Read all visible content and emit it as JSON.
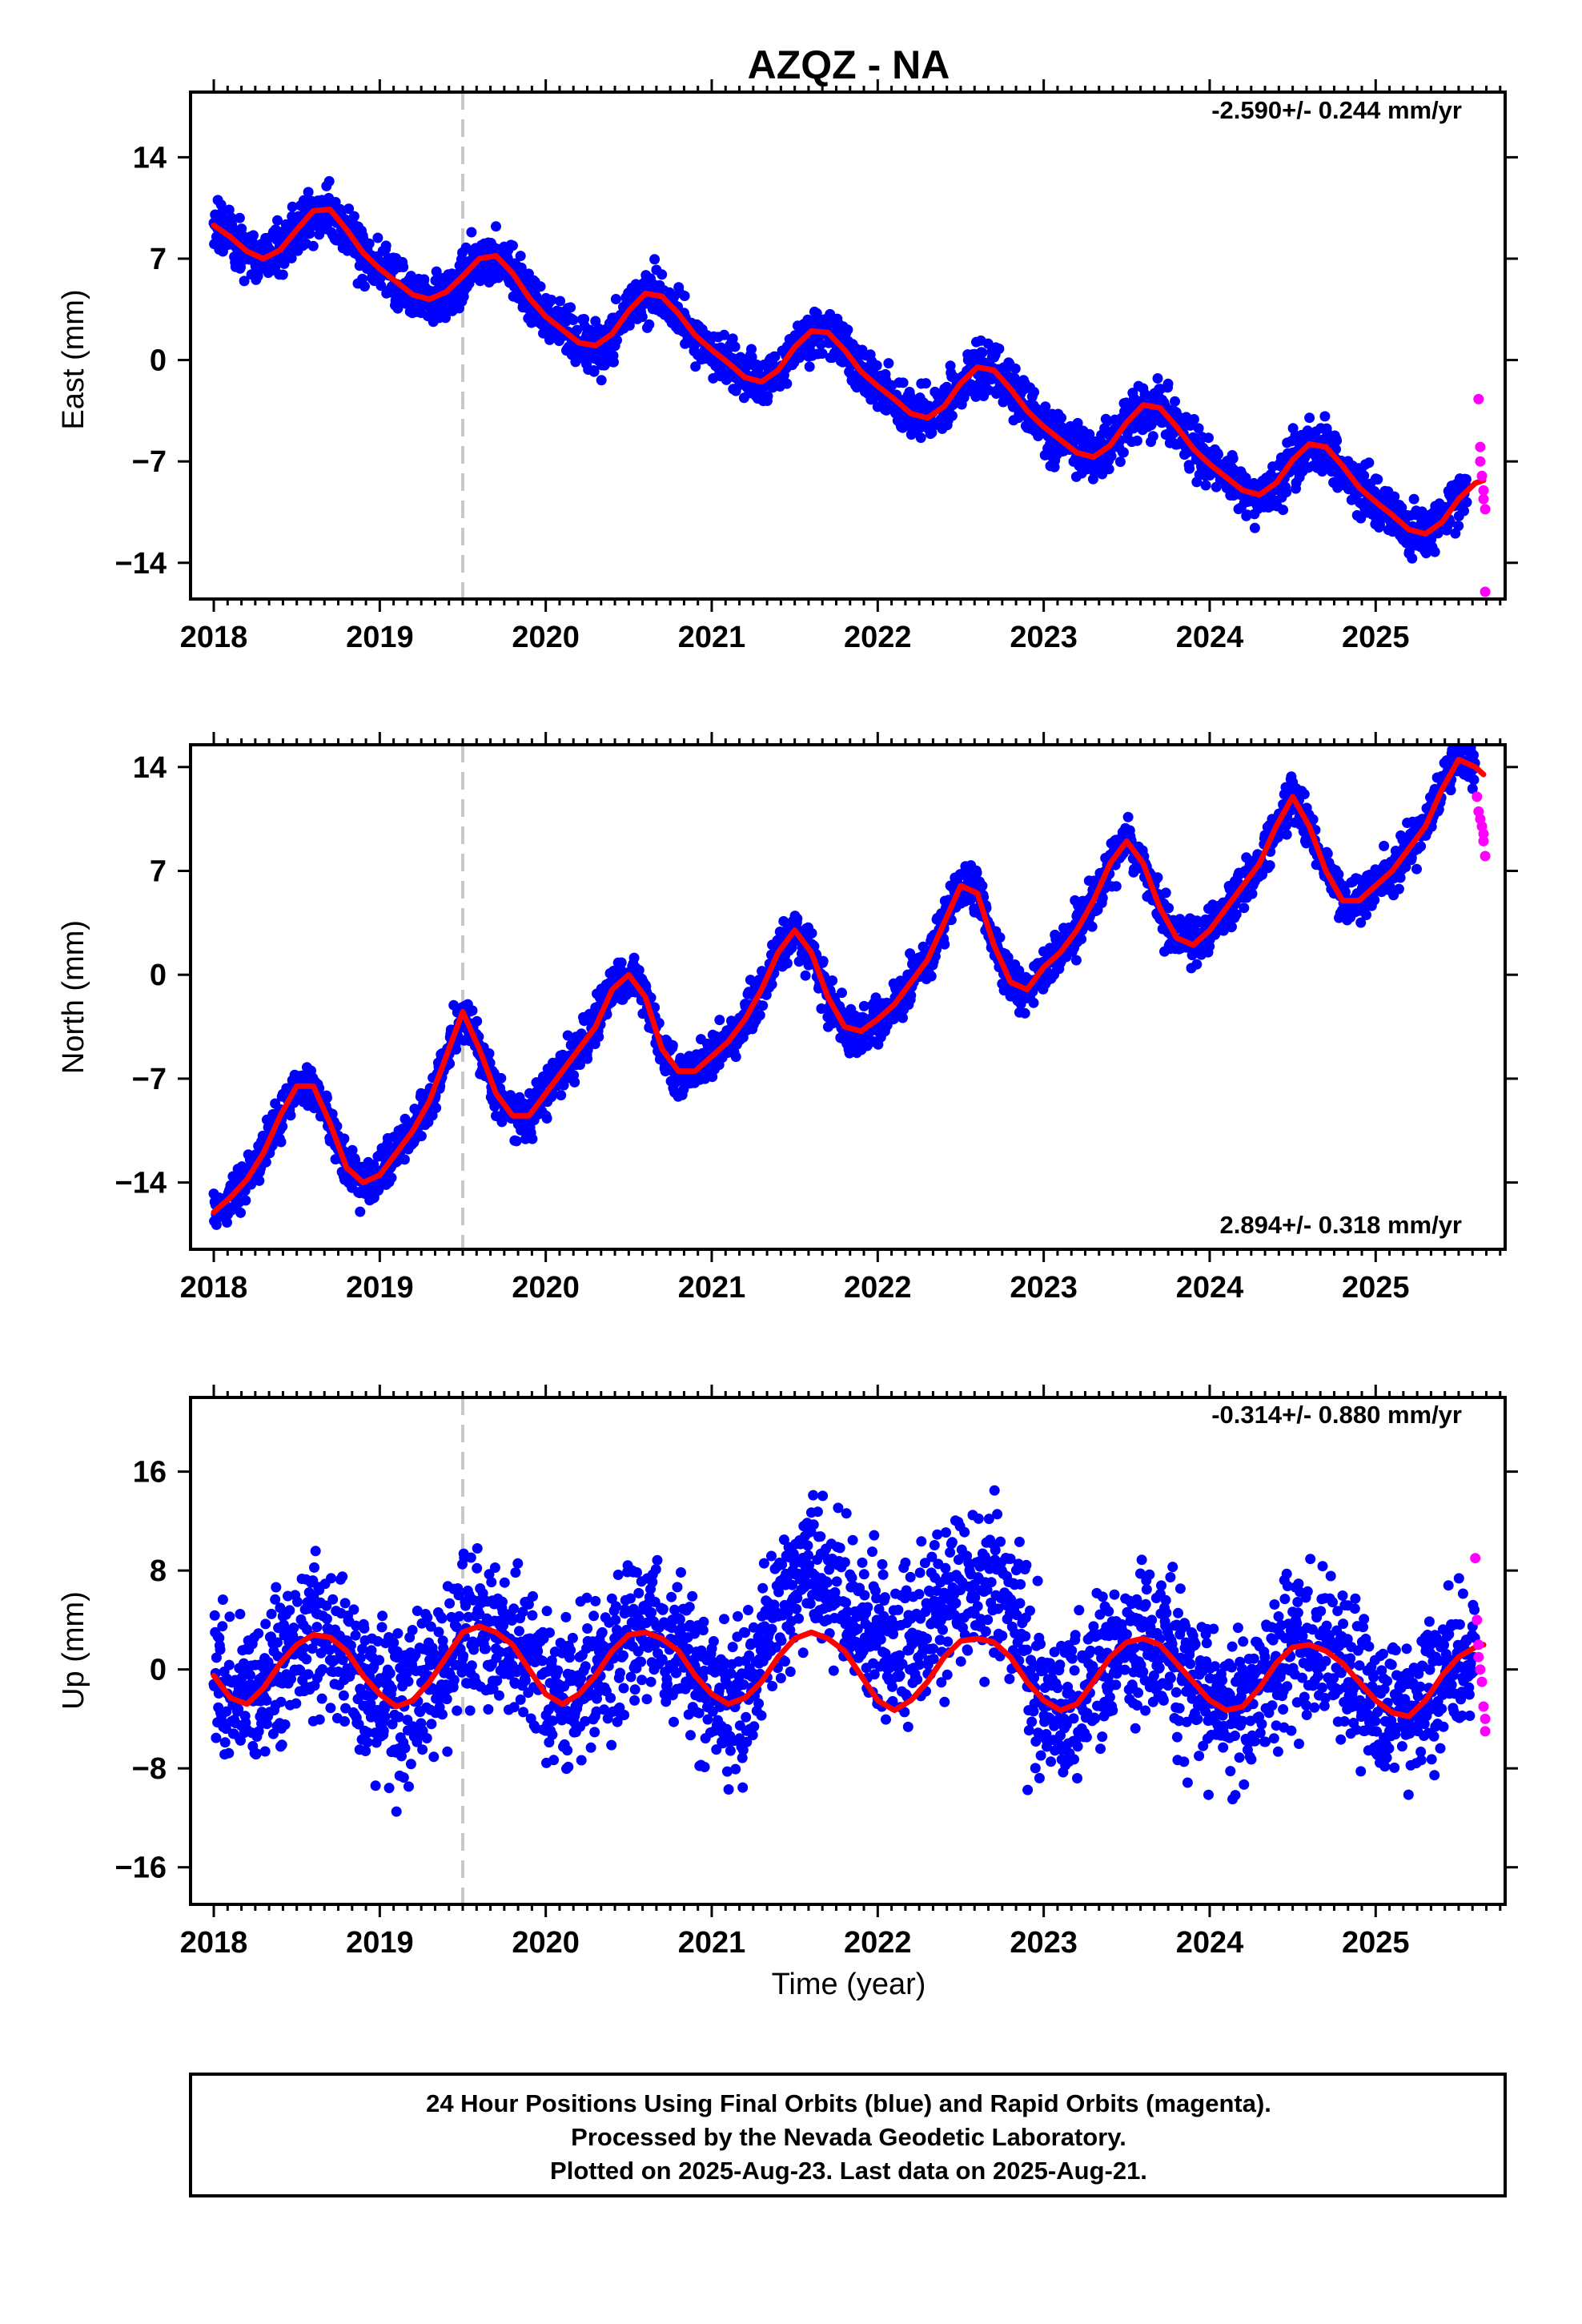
{
  "title": "AZQZ - NA",
  "footer": {
    "line1": "24 Hour Positions Using Final Orbits (blue) and Rapid Orbits (magenta).",
    "line2": "Processed by the Nevada Geodetic Laboratory.",
    "line3": "Plotted on 2025-Aug-23. Last data on 2025-Aug-21."
  },
  "colors": {
    "final_orbits": "#0000ff",
    "rapid_orbits": "#ff00ff",
    "model_fit": "#ff0000",
    "event_line": "#c8c8c8"
  },
  "chart_data": [
    {
      "type": "scatter",
      "panel": "east",
      "title": "",
      "xlabel": "",
      "ylabel": "East (mm)",
      "rate_label": "-2.590+/- 0.244 mm/yr",
      "xlim": [
        2017.86,
        2025.78
      ],
      "ylim": [
        -16.5,
        18.5
      ],
      "x_ticks": [
        2018,
        2019,
        2020,
        2021,
        2022,
        2023,
        2024,
        2025
      ],
      "x_tick_labels": [
        "2018",
        "2019",
        "2020",
        "2021",
        "2022",
        "2023",
        "2024",
        "2025"
      ],
      "y_ticks": [
        14,
        7,
        0,
        -7,
        -14
      ],
      "y_tick_labels": [
        "14",
        "7",
        "0",
        "−7",
        "−14"
      ],
      "event_x": 2019.5,
      "legend": "none",
      "grid": false,
      "series": [
        {
          "name": "Final Orbits (blue)",
          "x_start": 2018.0,
          "x_end": 2025.55,
          "trend_start": 9.2,
          "rate": -2.59,
          "annual_amp": 1.7,
          "annual_peak": 0.7,
          "scatter_sd": 1.3
        },
        {
          "name": "Rapid Orbits (magenta)",
          "x": [
            2025.62,
            2025.63,
            2025.63,
            2025.64,
            2025.65,
            2025.65,
            2025.66,
            2025.66
          ],
          "y": [
            -2.7,
            -6.0,
            -7.0,
            -8.0,
            -9.0,
            -9.6,
            -10.3,
            -16.0
          ]
        },
        {
          "name": "Model fit",
          "x": [
            2018.0,
            2018.1,
            2018.2,
            2018.3,
            2018.4,
            2018.5,
            2018.6,
            2018.7,
            2018.8,
            2018.9,
            2019.0,
            2019.1,
            2019.2,
            2019.3,
            2019.4,
            2019.5,
            2019.6,
            2019.7,
            2019.8,
            2019.9,
            2020.0,
            2020.1,
            2020.2,
            2020.3,
            2020.4,
            2020.5,
            2020.6,
            2020.7,
            2020.8,
            2020.9,
            2021.0,
            2021.1,
            2021.2,
            2021.3,
            2021.4,
            2021.5,
            2021.6,
            2021.7,
            2021.8,
            2021.9,
            2022.0,
            2022.1,
            2022.2,
            2022.3,
            2022.4,
            2022.5,
            2022.6,
            2022.7,
            2022.8,
            2022.9,
            2023.0,
            2023.1,
            2023.2,
            2023.3,
            2023.4,
            2023.5,
            2023.6,
            2023.7,
            2023.8,
            2023.9,
            2024.0,
            2024.1,
            2024.2,
            2024.3,
            2024.4,
            2024.5,
            2024.6,
            2024.7,
            2024.8,
            2024.9,
            2025.0,
            2025.1,
            2025.2,
            2025.3,
            2025.4,
            2025.5,
            2025.6,
            2025.65
          ],
          "y": [
            9.3,
            8.5,
            7.5,
            7.0,
            7.6,
            9.0,
            10.3,
            10.4,
            9.0,
            7.4,
            6.3,
            5.4,
            4.5,
            4.2,
            4.7,
            5.8,
            7.0,
            7.2,
            6.0,
            4.3,
            3.0,
            2.1,
            1.2,
            1.0,
            1.8,
            3.4,
            4.6,
            4.4,
            3.2,
            1.7,
            0.7,
            -0.2,
            -1.2,
            -1.5,
            -0.7,
            0.9,
            2.0,
            1.9,
            0.7,
            -0.8,
            -1.8,
            -2.7,
            -3.7,
            -4.0,
            -3.2,
            -1.6,
            -0.5,
            -0.7,
            -2.0,
            -3.5,
            -4.6,
            -5.5,
            -6.4,
            -6.7,
            -5.9,
            -4.3,
            -3.1,
            -3.3,
            -4.6,
            -6.1,
            -7.2,
            -8.1,
            -9.0,
            -9.3,
            -8.5,
            -6.9,
            -5.8,
            -6.0,
            -7.3,
            -8.8,
            -9.8,
            -10.7,
            -11.7,
            -12.0,
            -11.2,
            -9.6,
            -8.5,
            -8.3
          ]
        }
      ]
    },
    {
      "type": "scatter",
      "panel": "north",
      "title": "",
      "xlabel": "",
      "ylabel": "North (mm)",
      "rate_label": "2.894+/- 0.318 mm/yr",
      "xlim": [
        2017.86,
        2025.78
      ],
      "ylim": [
        -18.5,
        15.5
      ],
      "x_ticks": [
        2018,
        2019,
        2020,
        2021,
        2022,
        2023,
        2024,
        2025
      ],
      "x_tick_labels": [
        "2018",
        "2019",
        "2020",
        "2021",
        "2022",
        "2023",
        "2024",
        "2025"
      ],
      "y_ticks": [
        14,
        7,
        0,
        -7,
        -14
      ],
      "y_tick_labels": [
        "14",
        "7",
        "0",
        "−7",
        "−14"
      ],
      "event_x": 2019.5,
      "legend": "none",
      "grid": false,
      "series": [
        {
          "name": "Final Orbits (blue)",
          "x_start": 2018.0,
          "x_end": 2025.6,
          "trend_start": -12.0,
          "rate": 2.894,
          "annual_amp": 3.7,
          "annual_peak": 0.55,
          "scatter_sd": 1.1
        },
        {
          "name": "Rapid Orbits (magenta)",
          "x": [
            2025.61,
            2025.62,
            2025.63,
            2025.64,
            2025.65,
            2025.65,
            2025.66
          ],
          "y": [
            12.0,
            11.0,
            10.5,
            10.0,
            9.5,
            9.0,
            8.0
          ]
        },
        {
          "name": "Model fit",
          "x": [
            2018.0,
            2018.1,
            2018.2,
            2018.3,
            2018.4,
            2018.5,
            2018.6,
            2018.7,
            2018.8,
            2018.9,
            2019.0,
            2019.1,
            2019.2,
            2019.3,
            2019.4,
            2019.5,
            2019.6,
            2019.7,
            2019.8,
            2019.9,
            2020.0,
            2020.1,
            2020.2,
            2020.3,
            2020.4,
            2020.5,
            2020.6,
            2020.7,
            2020.8,
            2020.9,
            2021.0,
            2021.1,
            2021.2,
            2021.3,
            2021.4,
            2021.5,
            2021.6,
            2021.7,
            2021.8,
            2021.9,
            2022.0,
            2022.1,
            2022.2,
            2022.3,
            2022.4,
            2022.5,
            2022.6,
            2022.7,
            2022.8,
            2022.9,
            2023.0,
            2023.1,
            2023.2,
            2023.3,
            2023.4,
            2023.5,
            2023.6,
            2023.7,
            2023.8,
            2023.9,
            2024.0,
            2024.1,
            2024.2,
            2024.3,
            2024.4,
            2024.5,
            2024.6,
            2024.7,
            2024.8,
            2024.9,
            2025.0,
            2025.1,
            2025.2,
            2025.3,
            2025.4,
            2025.5,
            2025.6,
            2025.65
          ],
          "y": [
            -16.0,
            -15.0,
            -13.8,
            -12.0,
            -9.5,
            -7.5,
            -7.5,
            -10.0,
            -13.0,
            -14.0,
            -13.5,
            -12.0,
            -10.5,
            -8.5,
            -5.5,
            -2.5,
            -5.0,
            -8.0,
            -9.5,
            -9.5,
            -8.0,
            -6.5,
            -5.0,
            -3.5,
            -1.0,
            0.0,
            -1.5,
            -5.0,
            -6.5,
            -6.5,
            -5.5,
            -4.5,
            -3.0,
            -1.0,
            1.5,
            3.0,
            1.5,
            -1.5,
            -3.5,
            -3.8,
            -3.0,
            -2.0,
            -0.5,
            1.0,
            3.5,
            6.0,
            5.5,
            2.0,
            -0.5,
            -1.0,
            0.5,
            1.5,
            3.0,
            5.0,
            7.5,
            9.0,
            7.5,
            4.5,
            2.5,
            2.0,
            3.0,
            4.5,
            6.0,
            7.5,
            10.0,
            12.0,
            10.0,
            7.0,
            5.0,
            5.0,
            6.0,
            7.0,
            8.5,
            10.0,
            12.5,
            14.5,
            14.0,
            13.5
          ]
        }
      ]
    },
    {
      "type": "scatter",
      "panel": "up",
      "title": "",
      "xlabel": "Time (year)",
      "ylabel": "Up (mm)",
      "rate_label": "-0.314+/- 0.880 mm/yr",
      "xlim": [
        2017.86,
        2025.78
      ],
      "ylim": [
        -19,
        22
      ],
      "x_ticks": [
        2018,
        2019,
        2020,
        2021,
        2022,
        2023,
        2024,
        2025
      ],
      "x_tick_labels": [
        "2018",
        "2019",
        "2020",
        "2021",
        "2022",
        "2023",
        "2024",
        "2025"
      ],
      "y_ticks": [
        16,
        8,
        0,
        -8,
        -16
      ],
      "y_tick_labels": [
        "16",
        "8",
        "0",
        "−8",
        "−16"
      ],
      "event_x": 2019.5,
      "legend": "none",
      "grid": false,
      "series": [
        {
          "name": "Final Orbits (blue)",
          "x_start": 2018.0,
          "x_end": 2025.6,
          "trend_start": 0.0,
          "rate": -0.314,
          "annual_amp": 3.5,
          "annual_peak": 0.62,
          "scatter_sd": 4.5
        },
        {
          "name": "Rapid Orbits (magenta)",
          "x": [
            2025.6,
            2025.61,
            2025.62,
            2025.62,
            2025.63,
            2025.64,
            2025.65,
            2025.66,
            2025.66
          ],
          "y": [
            9.0,
            4.0,
            2.0,
            1.0,
            0.0,
            -1.0,
            -3.0,
            -4.0,
            -5.0
          ]
        },
        {
          "name": "Model fit",
          "x": [
            2018.0,
            2018.1,
            2018.2,
            2018.3,
            2018.4,
            2018.5,
            2018.6,
            2018.7,
            2018.8,
            2018.9,
            2019.0,
            2019.1,
            2019.2,
            2019.3,
            2019.4,
            2019.5,
            2019.6,
            2019.7,
            2019.8,
            2019.9,
            2020.0,
            2020.1,
            2020.2,
            2020.3,
            2020.4,
            2020.5,
            2020.6,
            2020.7,
            2020.8,
            2020.9,
            2021.0,
            2021.1,
            2021.2,
            2021.3,
            2021.4,
            2021.5,
            2021.6,
            2021.7,
            2021.8,
            2021.9,
            2022.0,
            2022.1,
            2022.2,
            2022.3,
            2022.4,
            2022.5,
            2022.6,
            2022.7,
            2022.8,
            2022.9,
            2023.0,
            2023.1,
            2023.2,
            2023.3,
            2023.4,
            2023.5,
            2023.6,
            2023.7,
            2023.8,
            2023.9,
            2024.0,
            2024.1,
            2024.2,
            2024.3,
            2024.4,
            2024.5,
            2024.6,
            2024.7,
            2024.8,
            2024.9,
            2025.0,
            2025.1,
            2025.2,
            2025.3,
            2025.4,
            2025.5,
            2025.6,
            2025.65
          ],
          "y": [
            -0.5,
            -2.3,
            -2.8,
            -1.5,
            0.5,
            2.0,
            2.8,
            2.6,
            1.5,
            -0.5,
            -2.0,
            -3.0,
            -2.5,
            -1.0,
            1.0,
            3.0,
            3.5,
            3.0,
            2.0,
            0.0,
            -2.0,
            -2.8,
            -2.0,
            -0.5,
            1.5,
            2.8,
            3.0,
            2.5,
            1.5,
            -0.5,
            -2.0,
            -2.8,
            -2.3,
            -1.0,
            1.0,
            2.5,
            3.0,
            2.5,
            1.5,
            -0.5,
            -2.5,
            -3.3,
            -2.5,
            -1.0,
            1.0,
            2.3,
            2.5,
            2.2,
            1.0,
            -1.0,
            -2.5,
            -3.3,
            -2.8,
            -1.0,
            1.0,
            2.2,
            2.5,
            2.0,
            0.5,
            -1.0,
            -2.5,
            -3.3,
            -3.0,
            -1.5,
            0.5,
            1.8,
            2.0,
            1.5,
            0.5,
            -1.0,
            -2.5,
            -3.5,
            -3.8,
            -2.5,
            -0.5,
            1.0,
            1.8,
            2.0
          ]
        }
      ]
    }
  ]
}
